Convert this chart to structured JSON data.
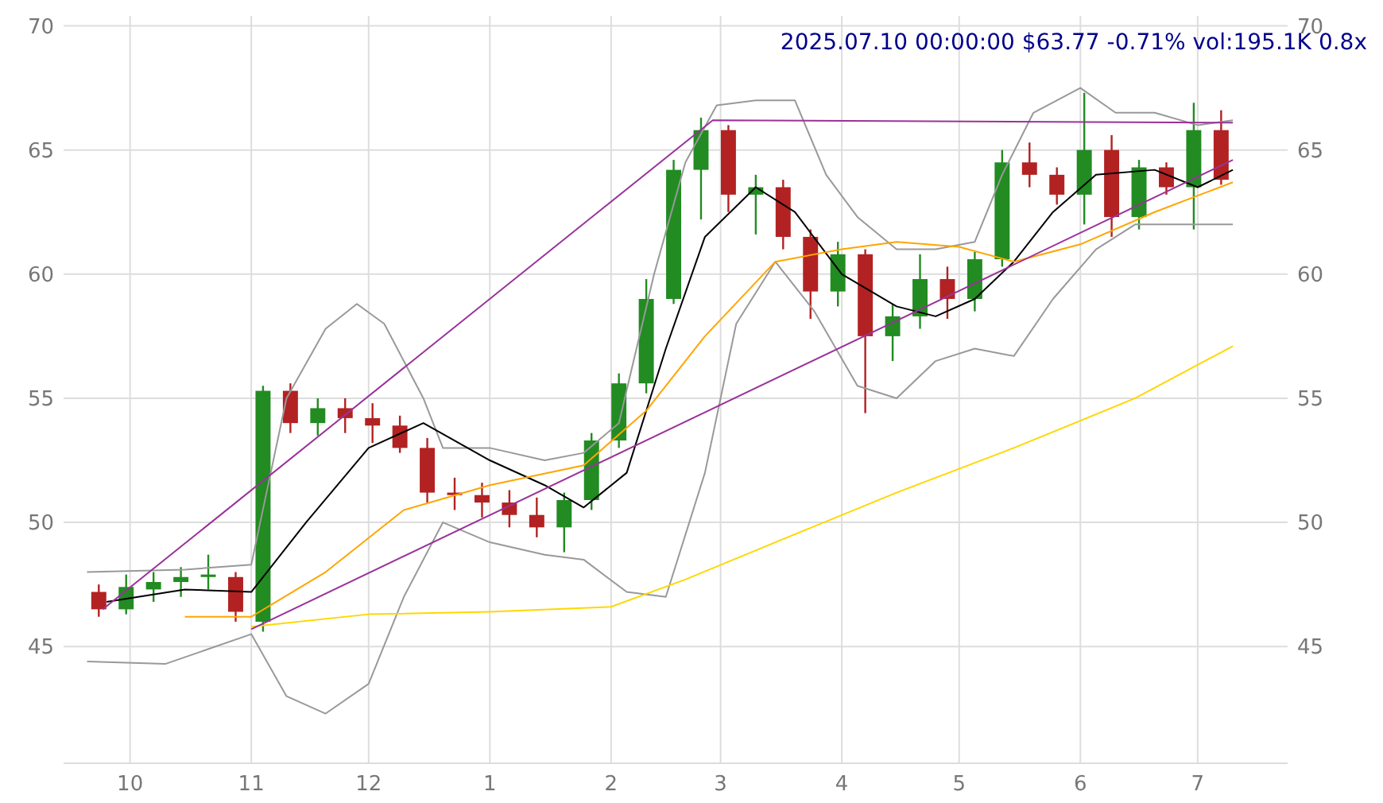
{
  "chart_data": {
    "type": "candlestick",
    "title": "2025.07.10 00:00:00 $63.77 -0.71% vol:195.1K 0.8x",
    "x": [
      "2024-09-23",
      "2024-09-30",
      "2024-10-07",
      "2024-10-14",
      "2024-10-21",
      "2024-10-28",
      "2024-11-04",
      "2024-11-11",
      "2024-11-18",
      "2024-11-25",
      "2024-12-02",
      "2024-12-09",
      "2024-12-16",
      "2024-12-23",
      "2024-12-30",
      "2025-01-06",
      "2025-01-13",
      "2025-01-20",
      "2025-01-27",
      "2025-02-03",
      "2025-02-10",
      "2025-02-17",
      "2025-02-24",
      "2025-03-03",
      "2025-03-10",
      "2025-03-17",
      "2025-03-24",
      "2025-03-31",
      "2025-04-07",
      "2025-04-14",
      "2025-04-21",
      "2025-04-28",
      "2025-05-05",
      "2025-05-12",
      "2025-05-19",
      "2025-05-26",
      "2025-06-02",
      "2025-06-09",
      "2025-06-16",
      "2025-06-23",
      "2025-06-30",
      "2025-07-07"
    ],
    "ohlc": [
      [
        47.2,
        47.5,
        46.2,
        46.5
      ],
      [
        46.5,
        47.9,
        46.3,
        47.4
      ],
      [
        47.3,
        48.0,
        46.8,
        47.6
      ],
      [
        47.6,
        48.2,
        47.0,
        47.8
      ],
      [
        47.8,
        48.7,
        47.3,
        47.9
      ],
      [
        47.8,
        48.0,
        46.0,
        46.4
      ],
      [
        46.0,
        55.5,
        45.6,
        55.3
      ],
      [
        55.3,
        55.6,
        53.6,
        54.0
      ],
      [
        54.0,
        55.0,
        53.5,
        54.6
      ],
      [
        54.6,
        55.0,
        53.6,
        54.2
      ],
      [
        54.2,
        54.8,
        53.2,
        53.9
      ],
      [
        53.9,
        54.3,
        52.8,
        53.0
      ],
      [
        53.0,
        53.4,
        50.8,
        51.2
      ],
      [
        51.2,
        51.8,
        50.5,
        51.1
      ],
      [
        51.1,
        51.6,
        50.2,
        50.8
      ],
      [
        50.8,
        51.3,
        49.8,
        50.3
      ],
      [
        50.3,
        51.0,
        49.4,
        49.8
      ],
      [
        49.8,
        51.2,
        48.8,
        50.9
      ],
      [
        50.9,
        53.6,
        50.5,
        53.3
      ],
      [
        53.3,
        56.0,
        53.0,
        55.6
      ],
      [
        55.6,
        59.8,
        55.2,
        59.0
      ],
      [
        59.0,
        64.6,
        58.8,
        64.2
      ],
      [
        64.2,
        66.3,
        62.2,
        65.8
      ],
      [
        65.8,
        66.0,
        62.5,
        63.2
      ],
      [
        63.2,
        64.0,
        61.6,
        63.5
      ],
      [
        63.5,
        63.8,
        61.0,
        61.5
      ],
      [
        61.5,
        61.8,
        58.2,
        59.3
      ],
      [
        59.3,
        61.3,
        58.7,
        60.8
      ],
      [
        60.8,
        61.0,
        54.4,
        57.5
      ],
      [
        57.5,
        58.8,
        56.5,
        58.3
      ],
      [
        58.3,
        60.8,
        57.8,
        59.8
      ],
      [
        59.8,
        60.3,
        58.2,
        59.0
      ],
      [
        59.0,
        60.9,
        58.5,
        60.6
      ],
      [
        60.6,
        65.0,
        60.3,
        64.5
      ],
      [
        64.5,
        65.3,
        63.5,
        64.0
      ],
      [
        64.0,
        64.3,
        62.8,
        63.2
      ],
      [
        63.2,
        67.3,
        62.0,
        65.0
      ],
      [
        65.0,
        65.6,
        61.5,
        62.3
      ],
      [
        62.3,
        64.6,
        61.8,
        64.3
      ],
      [
        64.3,
        64.5,
        63.2,
        63.5
      ],
      [
        63.5,
        66.9,
        61.8,
        65.8
      ],
      [
        65.8,
        66.6,
        63.6,
        63.8
      ]
    ],
    "colors": [
      "#b22222",
      "#228b22",
      "#228b22",
      "#228b22",
      "#228b22",
      "#b22222",
      "#228b22",
      "#b22222",
      "#228b22",
      "#b22222",
      "#b22222",
      "#b22222",
      "#b22222",
      "#b22222",
      "#b22222",
      "#b22222",
      "#b22222",
      "#228b22",
      "#228b22",
      "#228b22",
      "#228b22",
      "#228b22",
      "#228b22",
      "#b22222",
      "#228b22",
      "#b22222",
      "#b22222",
      "#228b22",
      "#b22222",
      "#228b22",
      "#228b22",
      "#b22222",
      "#228b22",
      "#228b22",
      "#b22222",
      "#b22222",
      "#228b22",
      "#b22222",
      "#228b22",
      "#b22222",
      "#228b22",
      "#b22222"
    ],
    "series": [
      {
        "type": "line",
        "color": "#999999",
        "x": [
          "2024-09-20",
          "2024-10-15",
          "2024-11-01",
          "2024-11-10",
          "2024-11-20",
          "2024-11-28",
          "2024-12-05",
          "2024-12-15",
          "2024-12-20",
          "2025-01-01",
          "2025-01-15",
          "2025-01-25",
          "2025-02-03",
          "2025-02-12",
          "2025-02-20",
          "2025-02-28",
          "2025-03-10",
          "2025-03-20",
          "2025-03-28",
          "2025-04-05",
          "2025-04-15",
          "2025-04-25",
          "2025-05-05",
          "2025-05-12",
          "2025-05-20",
          "2025-06-01",
          "2025-06-10",
          "2025-06-20",
          "2025-07-01",
          "2025-07-10"
        ],
        "values": [
          48.0,
          48.1,
          48.3,
          55,
          57.8,
          58.8,
          58,
          55,
          53,
          53,
          52.5,
          52.8,
          54,
          60,
          64.5,
          66.8,
          67,
          67,
          64,
          62.3,
          61,
          61,
          61.3,
          64,
          66.5,
          67.5,
          66.5,
          66.5,
          66,
          66.2
        ]
      },
      {
        "type": "line",
        "color": "#999999",
        "x": [
          "2024-09-20",
          "2024-10-10",
          "2024-11-01",
          "2024-11-10",
          "2024-11-20",
          "2024-12-01",
          "2024-12-10",
          "2024-12-20",
          "2025-01-01",
          "2025-01-15",
          "2025-01-25",
          "2025-02-05",
          "2025-02-15",
          "2025-02-25",
          "2025-03-05",
          "2025-03-15",
          "2025-03-25",
          "2025-04-05",
          "2025-04-15",
          "2025-04-25",
          "2025-05-05",
          "2025-05-15",
          "2025-05-25",
          "2025-06-05",
          "2025-06-15",
          "2025-06-25",
          "2025-07-10"
        ],
        "values": [
          44.4,
          44.3,
          45.5,
          43,
          42.3,
          43.5,
          47,
          50,
          49.2,
          48.7,
          48.5,
          47.2,
          47,
          52,
          58,
          60.5,
          58.5,
          55.5,
          55,
          56.5,
          57,
          56.7,
          59,
          61,
          62,
          62,
          62
        ]
      },
      {
        "type": "line",
        "color": "#000000",
        "x": [
          "2024-09-25",
          "2024-10-15",
          "2024-11-01",
          "2024-11-15",
          "2024-12-01",
          "2024-12-15",
          "2025-01-01",
          "2025-01-15",
          "2025-01-25",
          "2025-02-05",
          "2025-02-15",
          "2025-02-25",
          "2025-03-10",
          "2025-03-20",
          "2025-04-01",
          "2025-04-15",
          "2025-04-25",
          "2025-05-05",
          "2025-05-15",
          "2025-05-25",
          "2025-06-05",
          "2025-06-20",
          "2025-07-01",
          "2025-07-10"
        ],
        "values": [
          46.8,
          47.3,
          47.2,
          50,
          53,
          54,
          52.5,
          51.5,
          50.6,
          52,
          57,
          61.5,
          63.5,
          62.5,
          60,
          58.7,
          58.3,
          59,
          60.5,
          62.5,
          64,
          64.2,
          63.5,
          64.2
        ]
      },
      {
        "type": "line",
        "color": "#ffa500",
        "x": [
          "2024-10-15",
          "2024-11-01",
          "2024-11-20",
          "2024-12-10",
          "2025-01-01",
          "2025-01-25",
          "2025-02-10",
          "2025-02-25",
          "2025-03-15",
          "2025-04-01",
          "2025-04-15",
          "2025-05-01",
          "2025-05-15",
          "2025-06-01",
          "2025-06-20",
          "2025-07-10"
        ],
        "values": [
          46.2,
          46.2,
          48,
          50.5,
          51.5,
          52.3,
          54.5,
          57.5,
          60.5,
          61,
          61.3,
          61.1,
          60.5,
          61.2,
          62.5,
          63.7
        ]
      },
      {
        "type": "line",
        "color": "#ffd700",
        "x": [
          "2024-11-01",
          "2024-12-01",
          "2025-01-01",
          "2025-02-01",
          "2025-02-20",
          "2025-03-15",
          "2025-04-15",
          "2025-05-15",
          "2025-06-15",
          "2025-07-10"
        ],
        "values": [
          45.8,
          46.3,
          46.4,
          46.6,
          47.7,
          49.2,
          51.2,
          53,
          55,
          57.1
        ]
      },
      {
        "type": "line",
        "color": "#993399",
        "x": [
          "2024-09-24",
          "2025-02-27",
          "2025-07-10"
        ],
        "values": [
          46.5,
          66.2,
          66.1
        ]
      },
      {
        "type": "line",
        "color": "#993399",
        "x": [
          "2024-11-01",
          "2025-07-10"
        ],
        "values": [
          45.7,
          64.6
        ]
      }
    ],
    "xlim": [
      "2024-09-14",
      "2025-07-24"
    ],
    "xticks": [
      {
        "value": "2024-10-01",
        "label": "10"
      },
      {
        "value": "2024-11-01",
        "label": "11"
      },
      {
        "value": "2024-12-01",
        "label": "12"
      },
      {
        "value": "2025-01-01",
        "label": "1"
      },
      {
        "value": "2025-02-01",
        "label": "2"
      },
      {
        "value": "2025-03-01",
        "label": "3"
      },
      {
        "value": "2025-04-01",
        "label": "4"
      },
      {
        "value": "2025-05-01",
        "label": "5"
      },
      {
        "value": "2025-06-01",
        "label": "6"
      },
      {
        "value": "2025-07-01",
        "label": "7"
      }
    ],
    "ylim": [
      40.3,
      70.4
    ],
    "yticks": [
      45,
      50,
      55,
      60,
      65,
      70
    ],
    "y2lim": [
      40.3,
      70.4
    ],
    "y2ticks": [
      45,
      50,
      55,
      60,
      65,
      70
    ],
    "grid": true,
    "marker": "none"
  }
}
